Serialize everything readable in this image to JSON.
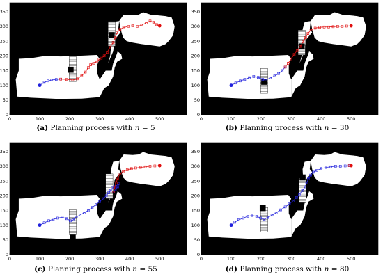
{
  "colors": {
    "background": "#000000",
    "free_space": "#ffffff",
    "tree_path": "#2222dd",
    "planned_path": "#e01010",
    "start_marker": "#2222dd",
    "goal_marker": "#e01010"
  },
  "chart_data": [
    {
      "type": "scatter",
      "label": "(a)",
      "caption_text": "Planning process with",
      "caption_var": "n",
      "caption_eq": "= 5",
      "xticks": [
        "0",
        "100",
        "200",
        "300",
        "400",
        "500"
      ],
      "yticks": [
        "0",
        "50",
        "100",
        "150",
        "200",
        "250",
        "300",
        "350"
      ],
      "xlim": [
        0,
        590
      ],
      "ylim": [
        0,
        380
      ],
      "start": [
        100,
        100
      ],
      "goal": [
        500,
        302
      ],
      "obstacles": [
        [
          203,
          153
        ],
        [
          340,
          270
        ]
      ],
      "ladders": [
        [
          210,
          155
        ],
        [
          340,
          275
        ]
      ],
      "blue_path": [
        [
          100,
          100
        ],
        [
          115,
          110
        ],
        [
          128,
          115
        ],
        [
          140,
          118
        ],
        [
          155,
          120
        ],
        [
          170,
          121
        ]
      ],
      "red_path": [
        [
          170,
          121
        ],
        [
          190,
          120
        ],
        [
          210,
          118
        ],
        [
          225,
          122
        ],
        [
          240,
          132
        ],
        [
          252,
          145
        ],
        [
          262,
          160
        ],
        [
          270,
          170
        ],
        [
          280,
          175
        ],
        [
          290,
          180
        ],
        [
          298,
          188
        ],
        [
          305,
          192
        ],
        [
          315,
          200
        ],
        [
          325,
          212
        ],
        [
          335,
          230
        ],
        [
          345,
          245
        ],
        [
          352,
          262
        ],
        [
          358,
          278
        ],
        [
          368,
          290
        ],
        [
          380,
          296
        ],
        [
          395,
          300
        ],
        [
          410,
          302
        ],
        [
          425,
          300
        ],
        [
          440,
          304
        ],
        [
          455,
          312
        ],
        [
          468,
          318
        ],
        [
          480,
          314
        ],
        [
          490,
          306
        ],
        [
          500,
          302
        ]
      ]
    },
    {
      "type": "scatter",
      "label": "(b)",
      "caption_text": "Planning process with",
      "caption_var": "n",
      "caption_eq": "= 30",
      "xticks": [
        "0",
        "100",
        "200",
        "300",
        "400",
        "500"
      ],
      "yticks": [
        "0",
        "50",
        "100",
        "150",
        "200",
        "250",
        "300",
        "350"
      ],
      "xlim": [
        0,
        590
      ],
      "ylim": [
        0,
        380
      ],
      "start": [
        100,
        100
      ],
      "goal": [
        500,
        302
      ],
      "obstacles": [
        [
          210,
          112
        ],
        [
          335,
          232
        ]
      ],
      "ladders": [
        [
          210,
          115
        ],
        [
          335,
          245
        ]
      ],
      "blue_path": [
        [
          100,
          100
        ],
        [
          115,
          108
        ],
        [
          130,
          115
        ],
        [
          145,
          120
        ],
        [
          160,
          126
        ],
        [
          175,
          130
        ],
        [
          190,
          127
        ],
        [
          205,
          120
        ],
        [
          215,
          118
        ],
        [
          230,
          125
        ],
        [
          245,
          132
        ],
        [
          258,
          140
        ],
        [
          270,
          150
        ],
        [
          280,
          162
        ]
      ],
      "red_path": [
        [
          280,
          162
        ],
        [
          290,
          175
        ],
        [
          300,
          190
        ],
        [
          310,
          205
        ],
        [
          320,
          218
        ],
        [
          330,
          232
        ],
        [
          340,
          248
        ],
        [
          348,
          262
        ],
        [
          356,
          276
        ],
        [
          366,
          288
        ],
        [
          380,
          294
        ],
        [
          395,
          297
        ],
        [
          410,
          298
        ],
        [
          425,
          298
        ],
        [
          440,
          299
        ],
        [
          455,
          300
        ],
        [
          470,
          300
        ],
        [
          485,
          301
        ],
        [
          500,
          302
        ]
      ]
    },
    {
      "type": "scatter",
      "label": "(c)",
      "caption_text": "Planning process with",
      "caption_var": "n",
      "caption_eq": "= 55",
      "xticks": [
        "0",
        "100",
        "200",
        "300",
        "400",
        "500"
      ],
      "yticks": [
        "0",
        "50",
        "100",
        "150",
        "200",
        "250",
        "300",
        "350"
      ],
      "xlim": [
        0,
        590
      ],
      "ylim": [
        0,
        380
      ],
      "start": [
        100,
        100
      ],
      "goal": [
        500,
        302
      ],
      "obstacles": [
        [
          210,
          57
        ],
        [
          332,
          160
        ]
      ],
      "ladders": [
        [
          210,
          110
        ],
        [
          332,
          232
        ]
      ],
      "blue_path": [
        [
          100,
          100
        ],
        [
          115,
          108
        ],
        [
          130,
          115
        ],
        [
          145,
          120
        ],
        [
          160,
          124
        ],
        [
          175,
          127
        ],
        [
          190,
          122
        ],
        [
          202,
          115
        ],
        [
          212,
          118
        ],
        [
          222,
          128
        ],
        [
          235,
          135
        ],
        [
          248,
          142
        ],
        [
          262,
          150
        ],
        [
          275,
          160
        ],
        [
          288,
          170
        ],
        [
          300,
          180
        ],
        [
          312,
          190
        ],
        [
          322,
          200
        ],
        [
          330,
          210
        ],
        [
          336,
          218
        ],
        [
          342,
          226
        ],
        [
          350,
          232
        ],
        [
          358,
          236
        ],
        [
          364,
          240
        ],
        [
          360,
          230
        ],
        [
          352,
          220
        ],
        [
          346,
          212
        ]
      ],
      "red_path": [
        [
          346,
          212
        ],
        [
          350,
          228
        ],
        [
          355,
          244
        ],
        [
          360,
          260
        ],
        [
          368,
          274
        ],
        [
          378,
          282
        ],
        [
          392,
          288
        ],
        [
          406,
          292
        ],
        [
          420,
          294
        ],
        [
          436,
          296
        ],
        [
          452,
          298
        ],
        [
          468,
          300
        ],
        [
          484,
          301
        ],
        [
          500,
          302
        ]
      ]
    },
    {
      "type": "scatter",
      "label": "(d)",
      "caption_text": "Planning process with",
      "caption_var": "n",
      "caption_eq": "= 80",
      "xticks": [
        "0",
        "100",
        "200",
        "300",
        "400",
        "500"
      ],
      "yticks": [
        "0",
        "50",
        "100",
        "150",
        "200",
        "250",
        "300",
        "350"
      ],
      "xlim": [
        0,
        590
      ],
      "ylim": [
        0,
        380
      ],
      "start": [
        100,
        100
      ],
      "goal": [
        500,
        302
      ],
      "obstacles": [
        [
          205,
          158
        ],
        [
          338,
          262
        ]
      ],
      "ladders": [
        [
          210,
          118
        ],
        [
          338,
          218
        ]
      ],
      "blue_path": [
        [
          100,
          100
        ],
        [
          112,
          110
        ],
        [
          125,
          118
        ],
        [
          140,
          124
        ],
        [
          155,
          130
        ],
        [
          170,
          133
        ],
        [
          185,
          130
        ],
        [
          198,
          124
        ],
        [
          210,
          120
        ],
        [
          222,
          126
        ],
        [
          236,
          134
        ],
        [
          250,
          142
        ],
        [
          265,
          152
        ],
        [
          280,
          162
        ],
        [
          294,
          172
        ],
        [
          306,
          182
        ],
        [
          318,
          194
        ],
        [
          328,
          206
        ],
        [
          338,
          218
        ],
        [
          346,
          230
        ],
        [
          352,
          244
        ],
        [
          358,
          258
        ],
        [
          365,
          270
        ],
        [
          374,
          280
        ],
        [
          386,
          286
        ],
        [
          400,
          292
        ],
        [
          416,
          296
        ],
        [
          432,
          298
        ],
        [
          448,
          300
        ],
        [
          464,
          300
        ],
        [
          480,
          301
        ],
        [
          494,
          302
        ],
        [
          500,
          302
        ]
      ],
      "red_path": [
        [
          494,
          302
        ],
        [
          500,
          302
        ]
      ]
    }
  ]
}
